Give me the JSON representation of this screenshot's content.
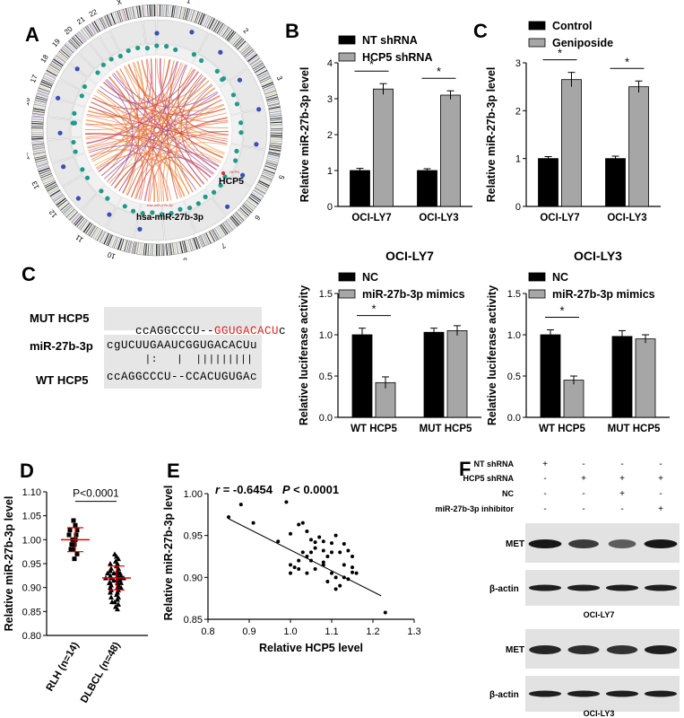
{
  "panels": {
    "A": {
      "letter": "A",
      "label_hcp5": "HCP5",
      "label_mir": "hsa-miR-27b-3p",
      "small_hcp5": "HCP5",
      "small_mir": "hsa-miR-27b-3p",
      "chromosomes": [
        "1",
        "2",
        "3",
        "4",
        "5",
        "6",
        "7",
        "8",
        "9",
        "10",
        "11",
        "12",
        "13",
        "14",
        "15",
        "16",
        "17",
        "18",
        "19",
        "20",
        "21",
        "22",
        "X",
        "Y"
      ]
    },
    "B": {
      "letter": "B"
    },
    "C1": {
      "letter": "C"
    },
    "C2": {
      "letter": "C",
      "seq": {
        "mut_label": "MUT HCP5",
        "mut_seq_black": "ccAGGCCCU--",
        "mut_seq_red": "GGUGACACU",
        "mut_seq_tail": "c",
        "mir_label": "miR-27b-3p",
        "mir_seq": "cgUCUUGAAUCGGUGACACUu",
        "pairing": "      |:   |  |||||||||",
        "wt_label": "WT HCP5",
        "wt_seq": "ccAGGCCCU--CCACUGUGAc"
      }
    },
    "D": {
      "letter": "D"
    },
    "E": {
      "letter": "E",
      "r_label": "r",
      "r_value": "= -0.6454",
      "p_label": "P",
      "p_value": "< 0.0001"
    },
    "F": {
      "letter": "F",
      "row_labels": [
        "NT shRNA",
        "HCP5 shRNA",
        "NC",
        "miR-27b-3p inhibitor"
      ],
      "signs": [
        [
          "+",
          "-",
          "-",
          "-"
        ],
        [
          "-",
          "+",
          "+",
          "+"
        ],
        [
          "-",
          "-",
          "+",
          "-"
        ],
        [
          "-",
          "-",
          "-",
          "+"
        ]
      ],
      "blot_labels": [
        "MET",
        "β-actin",
        "MET",
        "β-actin"
      ],
      "cell_lines": [
        "OCI-LY7",
        "OCI-LY3"
      ],
      "met_intensity_ly7": [
        0.95,
        0.7,
        0.45,
        0.95
      ],
      "met_intensity_ly3": [
        0.85,
        0.8,
        0.75,
        0.9
      ]
    }
  },
  "chart_data": [
    {
      "id": "B",
      "type": "bar",
      "categories": [
        "OCI-LY7",
        "OCI-LY3"
      ],
      "series": [
        {
          "name": "NT shRNA",
          "values": [
            1.0,
            1.0
          ],
          "errors": [
            0.06,
            0.05
          ],
          "color": "#000000"
        },
        {
          "name": "HCP5 shRNA",
          "values": [
            3.27,
            3.1
          ],
          "errors": [
            0.15,
            0.12
          ],
          "color": "#a6a6a6"
        }
      ],
      "ylabel": "Relative miR-27b-3p level",
      "ylim": [
        0,
        4
      ],
      "yticks": [
        "0",
        "1",
        "2",
        "3",
        "4"
      ],
      "sig": [
        "*",
        "*"
      ],
      "legend": "top-left"
    },
    {
      "id": "C1",
      "type": "bar",
      "categories": [
        "OCI-LY7",
        "OCI-LY3"
      ],
      "series": [
        {
          "name": "Control",
          "values": [
            1.0,
            1.0
          ],
          "errors": [
            0.04,
            0.05
          ],
          "color": "#000000"
        },
        {
          "name": "Geniposide",
          "values": [
            2.65,
            2.5
          ],
          "errors": [
            0.15,
            0.12
          ],
          "color": "#a6a6a6"
        }
      ],
      "ylabel": "Relative miR-27b-3p level",
      "ylim": [
        0,
        3
      ],
      "yticks": [
        "0",
        "1",
        "2",
        "3"
      ],
      "sig": [
        "*",
        "*"
      ],
      "legend": "top-left"
    },
    {
      "id": "LUC1",
      "type": "bar",
      "title": "OCI-LY7",
      "categories": [
        "WT HCP5",
        "MUT HCP5"
      ],
      "series": [
        {
          "name": "NC",
          "values": [
            1.0,
            1.03
          ],
          "errors": [
            0.08,
            0.05
          ],
          "color": "#000000"
        },
        {
          "name": "miR-27b-3p mimics",
          "values": [
            0.42,
            1.05
          ],
          "errors": [
            0.07,
            0.06
          ],
          "color": "#a6a6a6"
        }
      ],
      "ylabel": "Relative luciferase activity",
      "ylim": [
        0,
        1.5
      ],
      "yticks": [
        "0.0",
        "0.5",
        "1.0",
        "1.5"
      ],
      "sig": [
        "*",
        ""
      ],
      "legend": "top-left"
    },
    {
      "id": "LUC2",
      "type": "bar",
      "title": "OCI-LY3",
      "categories": [
        "WT HCP5",
        "MUT HCP5"
      ],
      "series": [
        {
          "name": "NC",
          "values": [
            1.0,
            0.98
          ],
          "errors": [
            0.06,
            0.07
          ],
          "color": "#000000"
        },
        {
          "name": "miR-27b-3p mimics",
          "values": [
            0.45,
            0.95
          ],
          "errors": [
            0.05,
            0.05
          ],
          "color": "#a6a6a6"
        }
      ],
      "ylabel": "Relative luciferase activity",
      "ylim": [
        0,
        1.5
      ],
      "yticks": [
        "0.0",
        "0.5",
        "1.0",
        "1.5"
      ],
      "sig": [
        "*",
        ""
      ],
      "legend": "top-left"
    },
    {
      "id": "D",
      "type": "scatter",
      "categories": [
        "RLH (n=14)",
        "DLBCL (n=48)"
      ],
      "ylabel": "Relative miR-27b-3p level",
      "ylim": [
        0.8,
        1.1
      ],
      "yticks": [
        "0.80",
        "0.85",
        "0.90",
        "0.95",
        "1.00",
        "1.05",
        "1.10"
      ],
      "annotation": "P<0.0001",
      "groups": [
        {
          "name": "RLH (n=14)",
          "mean": 1.0,
          "sd": 0.025,
          "points": [
            1.04,
            1.03,
            1.02,
            1.02,
            1.01,
            1.01,
            1.0,
            1.0,
            0.99,
            0.99,
            0.98,
            0.98,
            0.97,
            0.96
          ]
        },
        {
          "name": "DLBCL (n=48)",
          "mean": 0.92,
          "sd": 0.025,
          "points": [
            0.97,
            0.965,
            0.96,
            0.955,
            0.95,
            0.95,
            0.945,
            0.94,
            0.94,
            0.935,
            0.935,
            0.93,
            0.93,
            0.93,
            0.925,
            0.925,
            0.925,
            0.92,
            0.92,
            0.92,
            0.92,
            0.915,
            0.915,
            0.915,
            0.91,
            0.91,
            0.91,
            0.905,
            0.905,
            0.9,
            0.9,
            0.9,
            0.895,
            0.895,
            0.89,
            0.89,
            0.885,
            0.88,
            0.88,
            0.875,
            0.87,
            0.87,
            0.865,
            0.86,
            0.855,
            0.92,
            0.93,
            0.91
          ]
        }
      ]
    },
    {
      "id": "E",
      "type": "scatter",
      "xlabel": "Relative HCP5 level",
      "ylabel": "Relative miR-27b-3p level",
      "xlim": [
        0.8,
        1.3
      ],
      "ylim": [
        0.85,
        1.0
      ],
      "xticks": [
        "0.8",
        "0.9",
        "1.0",
        "1.1",
        "1.2",
        "1.3"
      ],
      "yticks": [
        "0.85",
        "0.90",
        "0.95",
        "1.00"
      ],
      "points": [
        [
          0.85,
          0.972
        ],
        [
          0.88,
          0.987
        ],
        [
          0.91,
          0.965
        ],
        [
          0.99,
          0.99
        ],
        [
          0.97,
          0.943
        ],
        [
          1.0,
          0.952
        ],
        [
          1.02,
          0.963
        ],
        [
          1.03,
          0.965
        ],
        [
          1.04,
          0.955
        ],
        [
          1.05,
          0.945
        ],
        [
          1.06,
          0.942
        ],
        [
          1.07,
          0.948
        ],
        [
          1.08,
          0.943
        ],
        [
          1.1,
          0.941
        ],
        [
          1.11,
          0.95
        ],
        [
          1.13,
          0.94
        ],
        [
          1.14,
          0.932
        ],
        [
          1.15,
          0.925
        ],
        [
          1.12,
          0.93
        ],
        [
          1.1,
          0.93
        ],
        [
          1.09,
          0.925
        ],
        [
          1.08,
          0.932
        ],
        [
          1.06,
          0.935
        ],
        [
          1.05,
          0.93
        ],
        [
          1.04,
          0.925
        ],
        [
          1.03,
          0.93
        ],
        [
          1.02,
          0.92
        ],
        [
          1.0,
          0.915
        ],
        [
          1.01,
          0.912
        ],
        [
          1.0,
          0.905
        ],
        [
          1.02,
          0.91
        ],
        [
          1.04,
          0.905
        ],
        [
          1.06,
          0.91
        ],
        [
          1.08,
          0.915
        ],
        [
          1.1,
          0.905
        ],
        [
          1.11,
          0.9
        ],
        [
          1.12,
          0.89
        ],
        [
          1.13,
          0.9
        ],
        [
          1.14,
          0.898
        ],
        [
          1.15,
          0.906
        ],
        [
          1.16,
          0.905
        ],
        [
          1.09,
          0.895
        ],
        [
          1.11,
          0.886
        ],
        [
          1.05,
          0.92
        ],
        [
          1.08,
          0.918
        ],
        [
          1.13,
          0.915
        ],
        [
          1.15,
          0.912
        ],
        [
          1.23,
          0.858
        ]
      ],
      "fit": [
        [
          0.85,
          0.97
        ],
        [
          1.22,
          0.878
        ]
      ]
    }
  ]
}
